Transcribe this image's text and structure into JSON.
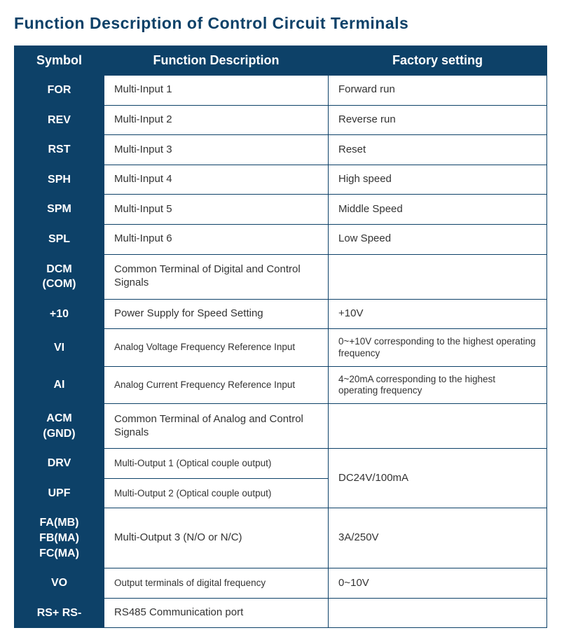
{
  "title": "Function Description of Control Circuit Terminals",
  "colors": {
    "brand": "#0d4168",
    "background": "#ffffff",
    "text": "#333333"
  },
  "columns": {
    "symbol": "Symbol",
    "func": "Function Description",
    "factory": "Factory setting"
  },
  "rows": {
    "r0": {
      "symbol": "FOR",
      "func": "Multi-Input 1",
      "factory": "Forward run"
    },
    "r1": {
      "symbol": "REV",
      "func": "Multi-Input 2",
      "factory": "Reverse run"
    },
    "r2": {
      "symbol": "RST",
      "func": "Multi-Input 3",
      "factory": "Reset"
    },
    "r3": {
      "symbol": "SPH",
      "func": "Multi-Input 4",
      "factory": "High speed"
    },
    "r4": {
      "symbol": "SPM",
      "func": "Multi-Input 5",
      "factory": "Middle Speed"
    },
    "r5": {
      "symbol": "SPL",
      "func": "Multi-Input 6",
      "factory": "Low Speed"
    },
    "r6": {
      "symbol": "DCM\n(COM)",
      "func": "Common Terminal of Digital and Control Signals",
      "factory": ""
    },
    "r7": {
      "symbol": "+10",
      "func": "Power Supply for Speed Setting",
      "factory": "+10V"
    },
    "r8": {
      "symbol": "VI",
      "func": "Analog Voltage Frequency Reference Input",
      "factory": "0~+10V corresponding to the highest operating frequency"
    },
    "r9": {
      "symbol": "AI",
      "func": "Analog Current Frequency Reference Input",
      "factory": "4~20mA corresponding to the highest operating frequency"
    },
    "r10": {
      "symbol": "ACM\n(GND)",
      "func": "Common Terminal of Analog and Control Signals",
      "factory": ""
    },
    "r11": {
      "symbol": "DRV",
      "func": "Multi-Output 1 (Optical couple output)",
      "factory_merged": "DC24V/100mA"
    },
    "r12": {
      "symbol": "UPF",
      "func": "Multi-Output 2 (Optical couple output)"
    },
    "r13": {
      "symbol": "FA(MB)\nFB(MA)\nFC(MA)",
      "func": "Multi-Output 3 (N/O or N/C)",
      "factory": "3A/250V"
    },
    "r14": {
      "symbol": "VO",
      "func": "Output terminals of digital frequency",
      "factory": "0~10V"
    },
    "r15": {
      "symbol": "RS+ RS-",
      "func": "RS485 Communication port",
      "factory": ""
    }
  }
}
